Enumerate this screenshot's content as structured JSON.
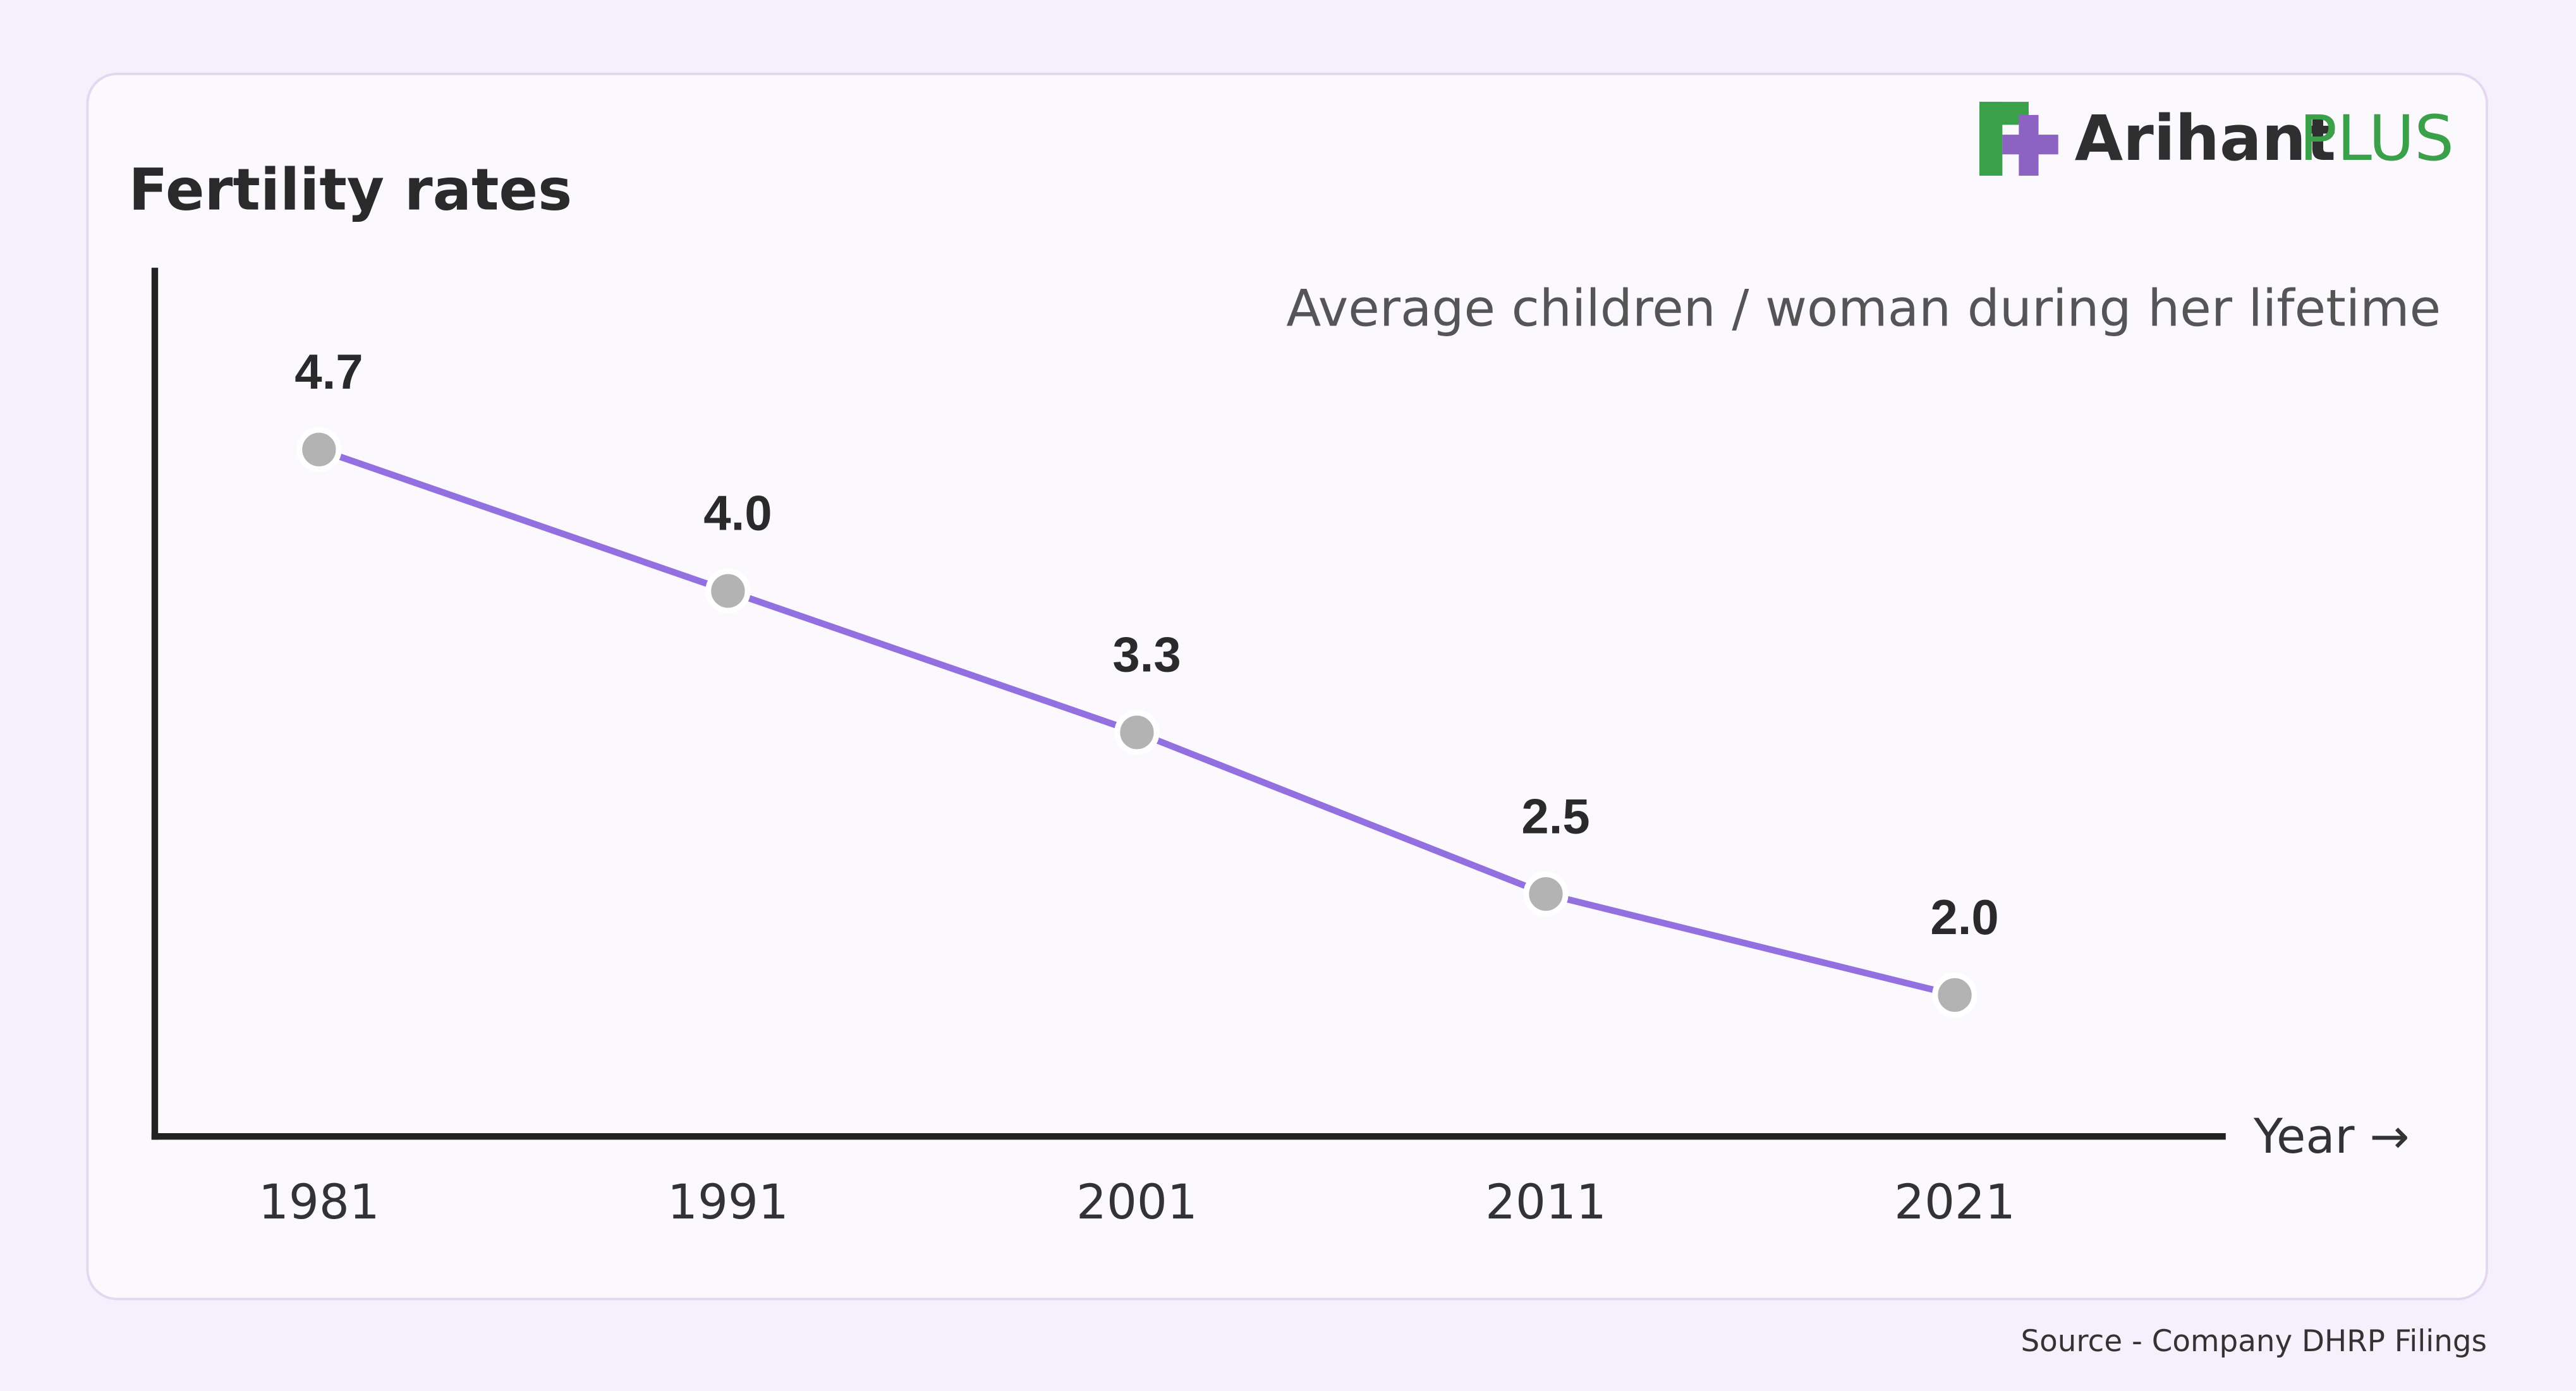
{
  "chart_data": {
    "type": "line",
    "title": "Fertility rates",
    "subtitle": "Average children / woman during her lifetime",
    "x_label": "Year →",
    "categories": [
      "1981",
      "1991",
      "2001",
      "2011",
      "2021"
    ],
    "values": [
      4.7,
      4.0,
      3.3,
      2.5,
      2.0
    ],
    "value_labels": [
      "4.7",
      "4.0",
      "3.3",
      "2.5",
      "2.0"
    ],
    "color": "#9370e0",
    "marker_color": "#b3b3b3",
    "ylim": [
      1.3,
      5.6
    ],
    "grid": false
  },
  "brand": {
    "name": "Arihant",
    "suffix": "PLUS"
  },
  "source": "Source - Company DHRP Filings"
}
